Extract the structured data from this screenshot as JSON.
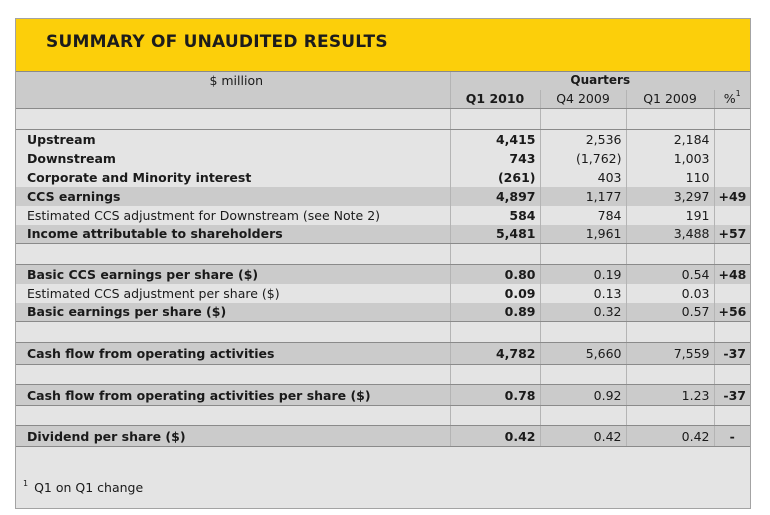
{
  "title": "SUMMARY OF UNAUDITED RESULTS",
  "header": {
    "unit_label": "$ million",
    "group_label": "Quarters",
    "columns": [
      "Q1 2010",
      "Q4 2009",
      "Q1 2009",
      "%"
    ],
    "pct_footnote_mark": "1"
  },
  "rows": [
    {
      "label": "Upstream",
      "q1_2010": "4,415",
      "q4_2009": "2,536",
      "q1_2009": "2,184",
      "pct": ""
    },
    {
      "label": "Downstream",
      "q1_2010": "743",
      "q4_2009": "(1,762)",
      "q1_2009": "1,003",
      "pct": ""
    },
    {
      "label": "Corporate and Minority interest",
      "q1_2010": "(261)",
      "q4_2009": "403",
      "q1_2009": "110",
      "pct": ""
    },
    {
      "label": "CCS earnings",
      "q1_2010": "4,897",
      "q4_2009": "1,177",
      "q1_2009": "3,297",
      "pct": "+49"
    },
    {
      "label": "Estimated CCS adjustment for Downstream (see Note 2)",
      "q1_2010": "584",
      "q4_2009": "784",
      "q1_2009": "191",
      "pct": ""
    },
    {
      "label": "Income attributable to shareholders",
      "q1_2010": "5,481",
      "q4_2009": "1,961",
      "q1_2009": "3,488",
      "pct": "+57"
    },
    {
      "label": "Basic CCS earnings per share ($)",
      "q1_2010": "0.80",
      "q4_2009": "0.19",
      "q1_2009": "0.54",
      "pct": "+48"
    },
    {
      "label": "Estimated CCS adjustment per share ($)",
      "q1_2010": "0.09",
      "q4_2009": "0.13",
      "q1_2009": "0.03",
      "pct": ""
    },
    {
      "label": "Basic earnings per share ($)",
      "q1_2010": "0.89",
      "q4_2009": "0.32",
      "q1_2009": "0.57",
      "pct": "+56"
    },
    {
      "label": "Cash flow from operating activities",
      "q1_2010": "4,782",
      "q4_2009": "5,660",
      "q1_2009": "7,559",
      "pct": "-37"
    },
    {
      "label": "Cash flow from operating activities per share ($)",
      "q1_2010": "0.78",
      "q4_2009": "0.92",
      "q1_2009": "1.23",
      "pct": "-37"
    },
    {
      "label": "Dividend per share ($)",
      "q1_2010": "0.42",
      "q4_2009": "0.42",
      "q1_2009": "0.42",
      "pct": "-"
    }
  ],
  "footnote": {
    "mark": "1",
    "text": "Q1 on Q1 change"
  }
}
